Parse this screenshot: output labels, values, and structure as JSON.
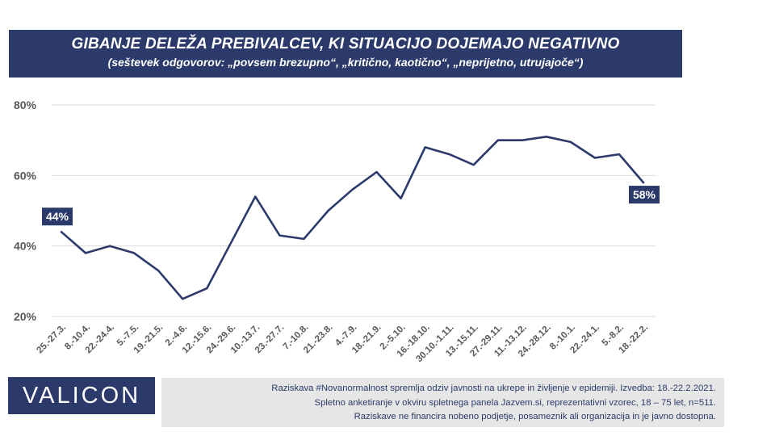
{
  "header": {
    "title": "GIBANJE DELEŽA PREBIVALCEV, KI SITUACIJO DOJEMAJO NEGATIVNO",
    "subtitle": "(seštevek odgovorov: „povsem brezupno“, „kritično, kaotično“, „neprijetno, utrujajoče“)"
  },
  "chart_data": {
    "type": "line",
    "title": "GIBANJE DELEŽA PREBIVALCEV, KI SITUACIJO DOJEMAJO NEGATIVNO",
    "subtitle": "(seštevek odgovorov: „povsem brezupno“, „kritično, kaotično“, „neprijetno, utrujajoče“)",
    "categories": [
      "25.-27.3.",
      "8.-10.4.",
      "22.-24.4.",
      "5.-7.5.",
      "19.-21.5.",
      "2.-4.6.",
      "12.-15.6.",
      "24.-29.6.",
      "10.-13.7.",
      "23.-27.7.",
      "7.-10.8.",
      "21.-23.8.",
      "4.-7.9.",
      "18.-21.9.",
      "2.-5.10.",
      "16.-18.10.",
      "30.10.-1.11.",
      "13.-15.11.",
      "27.-29.11.",
      "11.-13.12.",
      "24.-28.12.",
      "8.-10.1.",
      "22.-24.1.",
      "5.-8.2.",
      "18.-22.2."
    ],
    "values": [
      44,
      38,
      40,
      38,
      33,
      25,
      28,
      41,
      54,
      43,
      42,
      50,
      56,
      61,
      53.5,
      68,
      66,
      63,
      70,
      70,
      71,
      69.5,
      65,
      66,
      58
    ],
    "y_ticks": [
      "20%",
      "40%",
      "60%",
      "80%"
    ],
    "ylim": [
      20,
      80
    ],
    "grid": true,
    "legend": "none",
    "line_color": "#2b3a6b",
    "annotations": [
      {
        "index": 0,
        "label": "44%"
      },
      {
        "index": 24,
        "label": "58%"
      }
    ]
  },
  "footer": {
    "logo": "VALICON",
    "note_lines": [
      "Raziskava #Novanormalnost spremlja  odziv javnosti  na ukrepe in življenje v epidemiji.  Izvedba: 18.-22.2.2021.",
      "Spletno anketiranje v okviru  spletnega panela Jazvem.si, reprezentativni vzorec, 18 – 75 let, n=511.",
      "Raziskave ne financira nobeno podjetje, posameznik ali organizacija in je javno dostopna."
    ]
  },
  "colors": {
    "brand": "#2b3a6b",
    "grid": "#d9d9d9",
    "axis_text": "#595959",
    "note_bg": "#e6e6e6"
  }
}
